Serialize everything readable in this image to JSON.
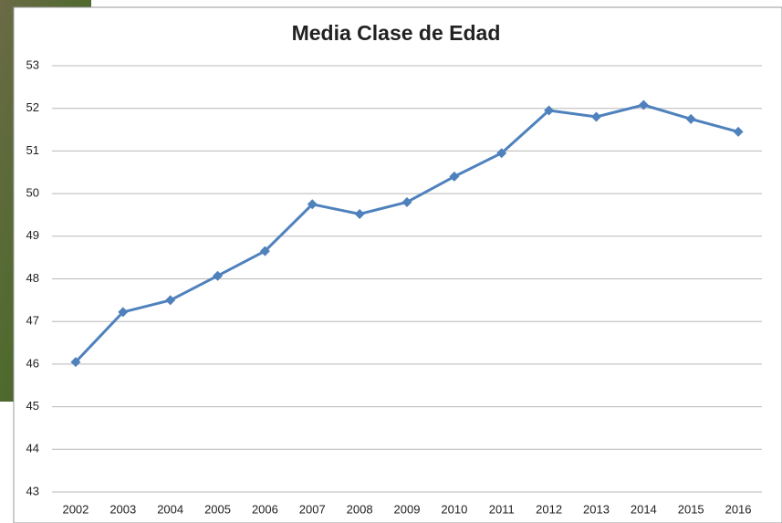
{
  "chart_data": {
    "type": "line",
    "title": "Media Clase de Edad",
    "categories": [
      "2002",
      "2003",
      "2004",
      "2005",
      "2006",
      "2007",
      "2008",
      "2009",
      "2010",
      "2011",
      "2012",
      "2013",
      "2014",
      "2015",
      "2016"
    ],
    "values": [
      46.05,
      47.22,
      47.5,
      48.07,
      48.65,
      49.75,
      49.52,
      49.8,
      50.4,
      50.95,
      51.95,
      51.8,
      52.08,
      51.75,
      51.45
    ],
    "color": "#4f81bd",
    "ylim": [
      43,
      53
    ],
    "yticks": [
      43,
      44,
      45,
      46,
      47,
      48,
      49,
      50,
      51,
      52,
      53
    ],
    "grid": true
  }
}
